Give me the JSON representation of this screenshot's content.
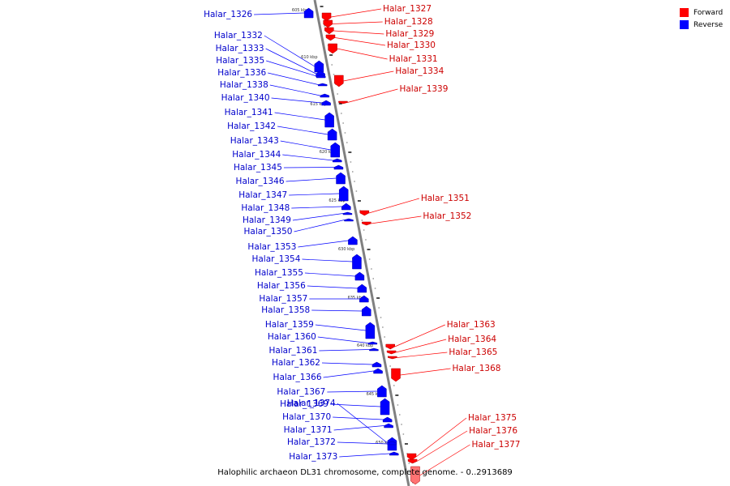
{
  "caption": "Halophilic archaeon DL31 chromosome, complete genome. - 0..2913689",
  "legend": [
    {
      "label": "Forward",
      "color": "#ff0000"
    },
    {
      "label": "Reverse",
      "color": "#0000ff"
    }
  ],
  "colors": {
    "forward": "#ff0000",
    "reverse": "#0000ff",
    "forward_label": "#cc0000",
    "reverse_label": "#0000cc",
    "spine": "#808080"
  },
  "ticks": [
    "605 kbp",
    "610 kbp",
    "615 kbp",
    "620 kbp",
    "625 kbp",
    "630 kbp",
    "635 kbp",
    "640 kbp",
    "645 kbp",
    "650 kbp"
  ],
  "genes": [
    {
      "name": "Halar_1326",
      "strand": "reverse"
    },
    {
      "name": "Halar_1327",
      "strand": "forward"
    },
    {
      "name": "Halar_1328",
      "strand": "forward"
    },
    {
      "name": "Halar_1329",
      "strand": "forward"
    },
    {
      "name": "Halar_1330",
      "strand": "forward"
    },
    {
      "name": "Halar_1331",
      "strand": "forward"
    },
    {
      "name": "Halar_1332",
      "strand": "reverse"
    },
    {
      "name": "Halar_1333",
      "strand": "reverse"
    },
    {
      "name": "Halar_1334",
      "strand": "forward"
    },
    {
      "name": "Halar_1335",
      "strand": "reverse"
    },
    {
      "name": "Halar_1336",
      "strand": "reverse"
    },
    {
      "name": "Halar_1338",
      "strand": "reverse"
    },
    {
      "name": "Halar_1339",
      "strand": "forward"
    },
    {
      "name": "Halar_1340",
      "strand": "reverse"
    },
    {
      "name": "Halar_1341",
      "strand": "reverse"
    },
    {
      "name": "Halar_1342",
      "strand": "reverse"
    },
    {
      "name": "Halar_1343",
      "strand": "reverse"
    },
    {
      "name": "Halar_1344",
      "strand": "reverse"
    },
    {
      "name": "Halar_1345",
      "strand": "reverse"
    },
    {
      "name": "Halar_1346",
      "strand": "reverse"
    },
    {
      "name": "Halar_1347",
      "strand": "reverse"
    },
    {
      "name": "Halar_1348",
      "strand": "reverse"
    },
    {
      "name": "Halar_1349",
      "strand": "reverse"
    },
    {
      "name": "Halar_1350",
      "strand": "reverse"
    },
    {
      "name": "Halar_1351",
      "strand": "forward"
    },
    {
      "name": "Halar_1352",
      "strand": "forward"
    },
    {
      "name": "Halar_1353",
      "strand": "reverse"
    },
    {
      "name": "Halar_1354",
      "strand": "reverse"
    },
    {
      "name": "Halar_1355",
      "strand": "reverse"
    },
    {
      "name": "Halar_1356",
      "strand": "reverse"
    },
    {
      "name": "Halar_1357",
      "strand": "reverse"
    },
    {
      "name": "Halar_1358",
      "strand": "reverse"
    },
    {
      "name": "Halar_1359",
      "strand": "reverse"
    },
    {
      "name": "Halar_1360",
      "strand": "reverse"
    },
    {
      "name": "Halar_1361",
      "strand": "reverse"
    },
    {
      "name": "Halar_1362",
      "strand": "reverse"
    },
    {
      "name": "Halar_1363",
      "strand": "forward"
    },
    {
      "name": "Halar_1364",
      "strand": "forward"
    },
    {
      "name": "Halar_1365",
      "strand": "forward"
    },
    {
      "name": "Halar_1366",
      "strand": "reverse"
    },
    {
      "name": "Halar_1367",
      "strand": "reverse"
    },
    {
      "name": "Halar_1368",
      "strand": "forward"
    },
    {
      "name": "Halar_1369",
      "strand": "reverse"
    },
    {
      "name": "Halar_1370",
      "strand": "reverse"
    },
    {
      "name": "Halar_1371",
      "strand": "reverse"
    },
    {
      "name": "Halar_1372",
      "strand": "reverse"
    },
    {
      "name": "Halar_1373",
      "strand": "reverse"
    },
    {
      "name": "Halar_1374",
      "strand": "reverse"
    },
    {
      "name": "Halar_1375",
      "strand": "forward"
    },
    {
      "name": "Halar_1376",
      "strand": "forward"
    },
    {
      "name": "Halar_1377",
      "strand": "forward"
    }
  ]
}
